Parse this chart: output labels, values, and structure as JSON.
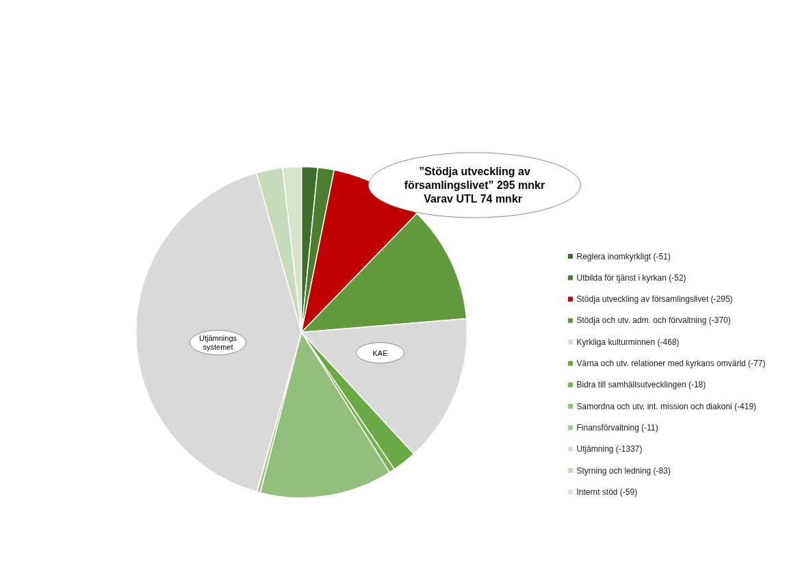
{
  "chart_data": {
    "type": "pie",
    "categories": [
      "Reglera inomkyrkligt (-51)",
      "Utbilda för tjänst i kyrkan (-52)",
      "Stödja utveckling av församlingslivet (-295)",
      "Stödja och utv. adm. och förvaltning (-370)",
      "Kyrkliga kulturminnen (-468)",
      "Värna och utv. relationer med kyrkans omvärld (-77)",
      "Bidra till samhällsutvecklingen (-18)",
      "Samordna och utv. int. mission och diakoni (-419)",
      "Finansförvaltning (-11)",
      "Utjämning (-1337)",
      "Styrning och ledning (-83)",
      "Internt stöd (-59)"
    ],
    "values": [
      1.57,
      1.6,
      9.1,
      11.42,
      14.44,
      2.38,
      0.56,
      12.93,
      0.34,
      41.28,
      2.56,
      1.82
    ],
    "colors": [
      "#3f6e2a",
      "#4b7f2f",
      "#c00000",
      "#629a3c",
      "#d9d9d9",
      "#6aaa45",
      "#78b252",
      "#93bf7c",
      "#a4ca90",
      "#d9d9d9",
      "#c6dbb9",
      "#d6e6cd"
    ],
    "legend": "right",
    "annotations": [
      "”Stödja utveckling av församlingslivet” 295 mnkr\nVarav UTL  74 mnkr",
      "Utjämnings\nsystemet",
      "KAE"
    ]
  }
}
